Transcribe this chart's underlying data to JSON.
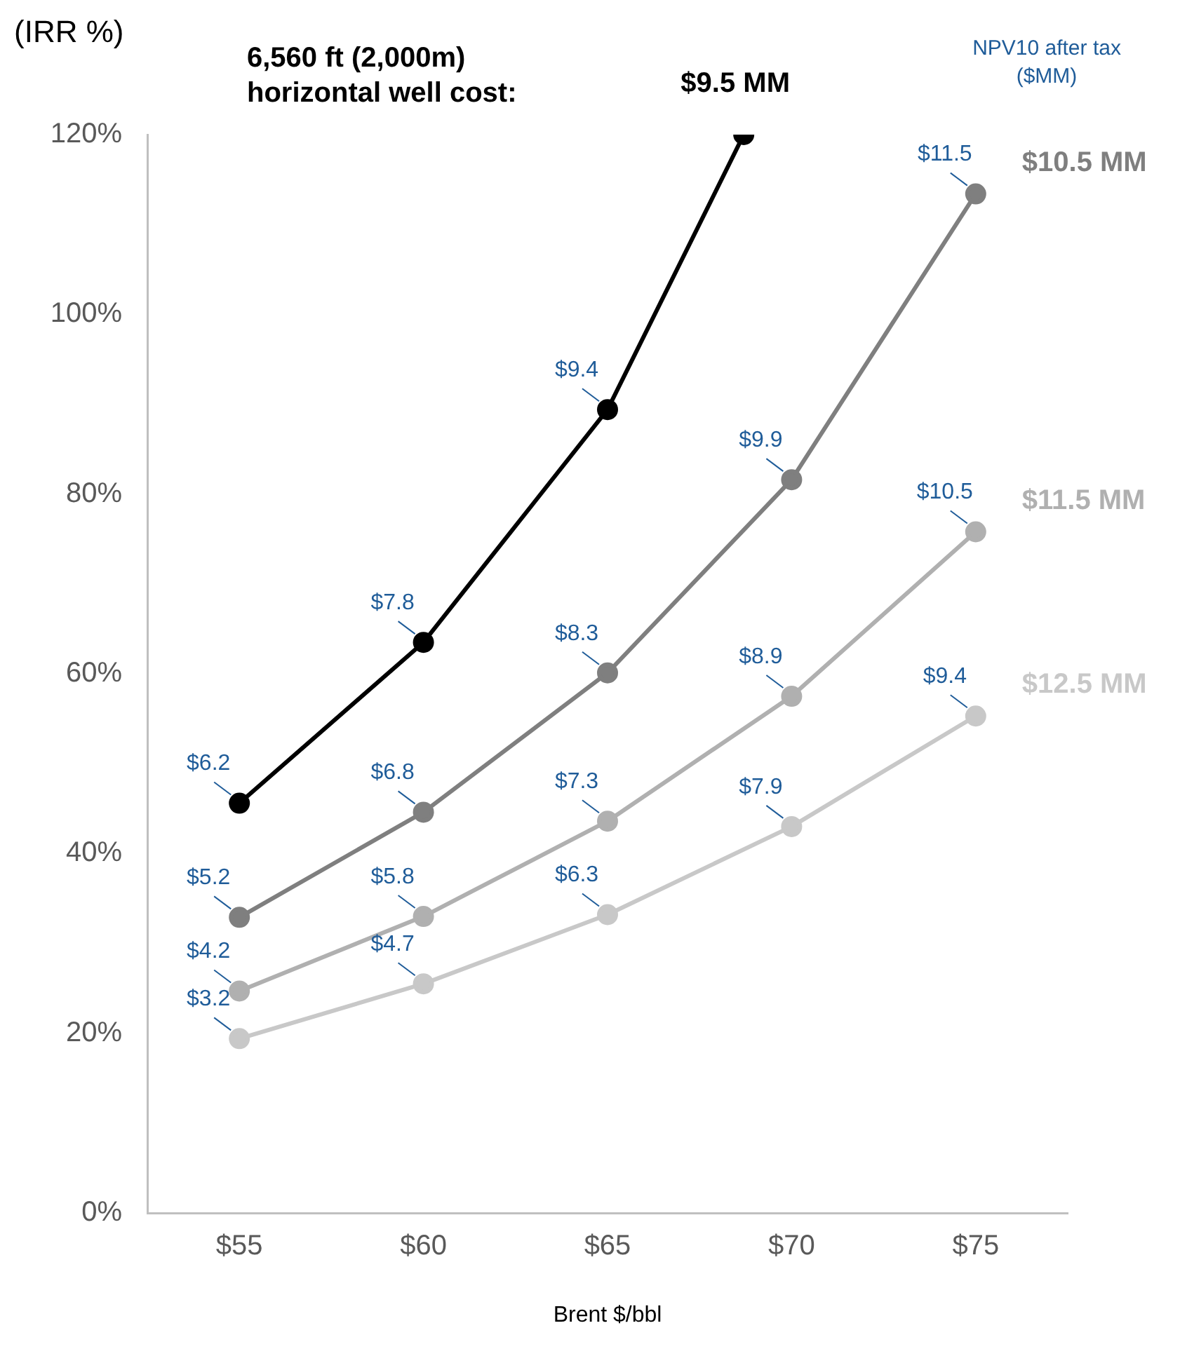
{
  "chart_data": {
    "type": "line",
    "ylabel": "(IRR %)",
    "xlabel": "Brent $/bbl",
    "title": "6,560 ft (2,000m)\nhorizontal well cost:",
    "annotations": [
      "NPV10 after tax\n($MM)",
      {
        "text": "$6.2",
        "x": 55,
        "y": 45.6
      },
      {
        "text": "$7.8",
        "x": 60,
        "y": 63.5
      },
      {
        "text": "$9.4",
        "x": 65,
        "y": 89.4
      },
      {
        "text": "$5.2",
        "x": 55,
        "y": 32.9
      },
      {
        "text": "$6.8",
        "x": 60,
        "y": 44.6
      },
      {
        "text": "$8.3",
        "x": 65,
        "y": 60.1
      },
      {
        "text": "$9.9",
        "x": 70,
        "y": 81.6
      },
      {
        "text": "$11.5",
        "x": 75,
        "y": 113.4
      },
      {
        "text": "$4.2",
        "x": 55,
        "y": 24.7
      },
      {
        "text": "$5.8",
        "x": 60,
        "y": 33.0
      },
      {
        "text": "$7.3",
        "x": 65,
        "y": 43.6
      },
      {
        "text": "$8.9",
        "x": 70,
        "y": 57.5
      },
      {
        "text": "$10.5",
        "x": 75,
        "y": 75.8
      },
      {
        "text": "$3.2",
        "x": 55,
        "y": 19.4
      },
      {
        "text": "$4.7",
        "x": 60,
        "y": 25.5
      },
      {
        "text": "$6.3",
        "x": 65,
        "y": 33.2
      },
      {
        "text": "$7.9",
        "x": 70,
        "y": 43.0
      },
      {
        "text": "$9.4",
        "x": 75,
        "y": 55.3
      }
    ],
    "xlim": [
      52.5,
      77.5
    ],
    "xticks": [
      {
        "value": 55,
        "label": "$55"
      },
      {
        "value": 60,
        "label": "$60"
      },
      {
        "value": 65,
        "label": "$65"
      },
      {
        "value": 70,
        "label": "$70"
      },
      {
        "value": 75,
        "label": "$75"
      }
    ],
    "ylim": [
      0,
      120
    ],
    "yticks": [
      {
        "value": 0,
        "label": "0%"
      },
      {
        "value": 20,
        "label": "20%"
      },
      {
        "value": 40,
        "label": "40%"
      },
      {
        "value": 60,
        "label": "60%"
      },
      {
        "value": 80,
        "label": "80%"
      },
      {
        "value": 100,
        "label": "100%"
      },
      {
        "value": 120,
        "label": "120%"
      }
    ],
    "grid": false,
    "legend": false,
    "marker": "circle",
    "line_style": "solid",
    "series": [
      {
        "name": "$9.5 MM",
        "color": "#000000",
        "x": [
          55,
          60,
          65,
          68.7
        ],
        "values": [
          45.6,
          63.5,
          89.4,
          120
        ]
      },
      {
        "name": "$10.5 MM",
        "color": "#7f7f7f",
        "x": [
          55,
          60,
          65,
          70,
          75
        ],
        "values": [
          32.9,
          44.6,
          60.1,
          81.6,
          113.4
        ]
      },
      {
        "name": "$11.5 MM",
        "color": "#b0b0b0",
        "x": [
          55,
          60,
          65,
          70,
          75
        ],
        "values": [
          24.7,
          33.0,
          43.6,
          57.5,
          75.8
        ]
      },
      {
        "name": "$12.5 MM",
        "color": "#c8c8c8",
        "x": [
          55,
          60,
          65,
          70,
          75
        ],
        "values": [
          19.4,
          25.5,
          33.2,
          43.0,
          55.3
        ]
      }
    ]
  }
}
